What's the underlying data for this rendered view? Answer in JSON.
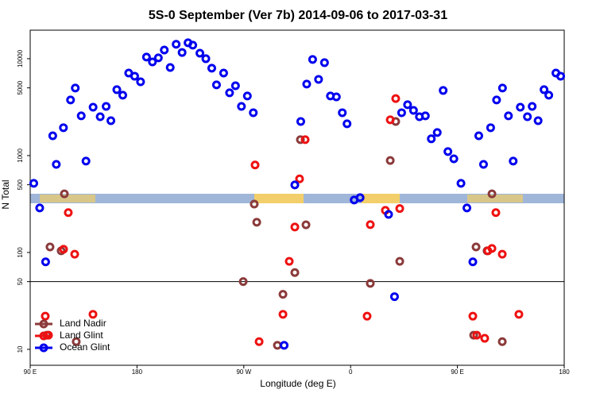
{
  "chart_data": {
    "type": "scatter",
    "title": "5S-0 September (Ver 7b)   2014-09-06 to 2017-03-31",
    "x_label": "Longitude (deg E)",
    "y_label": "N Total",
    "xlim": [
      90,
      540
    ],
    "xticks": [
      {
        "value": 90,
        "label": "90 E"
      },
      180,
      {
        "value": 270,
        "label": "90 W"
      },
      {
        "value": 360,
        "label": "0"
      },
      {
        "value": 450,
        "label": "90 E"
      },
      {
        "value": 540,
        "label": "180"
      }
    ],
    "ylim": [
      6.85,
      19700
    ],
    "log_y": true,
    "yticks": [
      10,
      50,
      100,
      500,
      1000,
      5000,
      10000
    ],
    "hline": 50,
    "legend": "bottom-left",
    "series": [
      {
        "name": "Land Nadir",
        "color": "#8b3a3a",
        "x": [
          106.7,
          116.1,
          118.8,
          128.8,
          104.1,
          269.5,
          278.8,
          280.9,
          298.3,
          303,
          313,
          322.4,
          317.7,
          376.6,
          393.4,
          398,
          401.4,
          465.7,
          475,
          479.1,
          487.8,
          463.7
        ],
        "values": [
          114,
          104,
          403,
          12,
          14,
          50,
          316,
          205,
          11,
          37,
          62,
          193,
          1460,
          48,
          890,
          2250,
          81,
          114,
          104,
          403,
          12,
          14
        ]
      },
      {
        "name": "Land Glint",
        "color": "#ee1111",
        "x": [
          102.7,
          105.4,
          118.1,
          122.1,
          127.5,
          142.9,
          279.5,
          282.9,
          303,
          308.3,
          313,
          317,
          321.7,
          373.9,
          376.6,
          389.3,
          393.4,
          398,
          401.4,
          463,
          466.3,
          475.7,
          479.1,
          482.4,
          487.8,
          501.8,
          473
        ],
        "values": [
          22,
          14,
          108,
          258,
          96,
          23,
          800,
          12,
          23,
          81,
          183,
          575,
          1460,
          22,
          194,
          272,
          2340,
          3880,
          284,
          22,
          14,
          104,
          110,
          258,
          96,
          23,
          13
        ]
      },
      {
        "name": "Ocean Glint",
        "color": "#0000ee",
        "x": [
          93,
          98,
          103,
          109,
          112,
          118,
          124,
          128,
          133,
          137,
          143,
          149,
          154,
          158,
          163,
          168,
          173,
          178,
          183,
          188,
          193,
          198,
          203,
          208,
          213,
          218,
          223,
          227,
          233,
          238,
          243,
          247,
          253,
          258,
          263,
          268,
          273,
          278,
          304,
          313,
          318,
          323,
          328,
          333,
          338,
          343,
          348,
          353,
          357,
          363,
          368,
          392,
          397,
          403,
          408,
          413,
          418,
          423,
          428,
          433,
          438,
          442,
          447,
          453,
          458,
          463,
          468,
          472,
          478,
          483,
          488,
          493,
          497,
          503,
          509,
          513,
          518,
          523,
          527,
          533,
          537
        ],
        "values": [
          517,
          288,
          80,
          1600,
          812,
          1940,
          3750,
          4980,
          2570,
          877,
          3160,
          2520,
          3220,
          2290,
          4790,
          4200,
          7110,
          6600,
          5780,
          10400,
          9270,
          10200,
          12300,
          8120,
          14100,
          11600,
          14600,
          13800,
          11400,
          10000,
          7980,
          5370,
          7110,
          4450,
          5260,
          3220,
          4120,
          2770,
          11,
          498,
          2250,
          5470,
          9820,
          6120,
          9100,
          4120,
          4040,
          2770,
          2130,
          348,
          368,
          247,
          35,
          2770,
          3350,
          2930,
          2520,
          2570,
          1490,
          1730,
          4700,
          1100,
          927,
          517,
          288,
          80,
          1600,
          812,
          1940,
          3750,
          4980,
          2570,
          877,
          3160,
          2520,
          3220,
          2290,
          4790,
          4200,
          7110,
          6600
        ]
      }
    ]
  }
}
